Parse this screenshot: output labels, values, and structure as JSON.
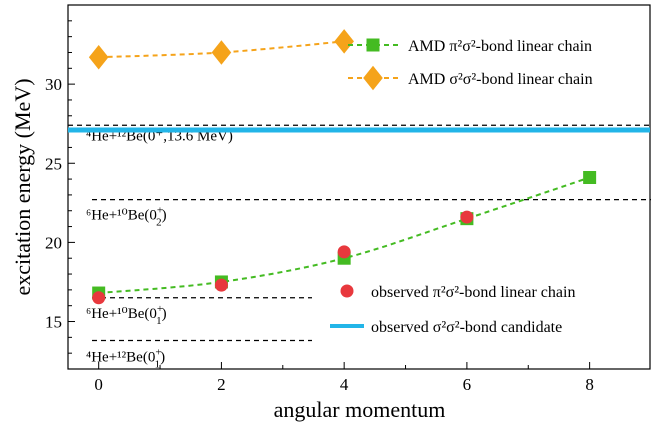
{
  "chart_data": {
    "type": "scatter",
    "xlabel": "angular momentum",
    "ylabel": "excitation energy (MeV)",
    "xlim": [
      -0.5,
      9
    ],
    "ylim": [
      12,
      35
    ],
    "xticks": [
      0,
      2,
      4,
      6,
      8
    ],
    "yticks": [
      15,
      20,
      25,
      30
    ],
    "series": [
      {
        "name": "AMD π²σ²-bond linear chain",
        "marker": "square",
        "color": "#44bb22",
        "line": "dashed",
        "x": [
          0,
          2,
          4,
          6,
          8
        ],
        "y": [
          16.8,
          17.5,
          19.0,
          21.5,
          24.1
        ]
      },
      {
        "name": "AMD σ²σ²-bond linear chain",
        "marker": "diamond",
        "color": "#f5a31a",
        "line": "dashed",
        "x": [
          0,
          2,
          4
        ],
        "y": [
          31.7,
          32.0,
          32.7
        ]
      },
      {
        "name": "observed π²σ²-bond linear chain",
        "marker": "circle",
        "color": "#e8383d",
        "line": "none",
        "x": [
          0,
          2,
          4,
          6
        ],
        "y": [
          16.5,
          17.3,
          19.4,
          21.6
        ]
      },
      {
        "name": "observed σ²σ²-bond candidate",
        "marker": "hline",
        "color": "#22b5e8",
        "line": "solid",
        "y": [
          27.1
        ]
      }
    ],
    "thresholds": [
      {
        "y": 27.4,
        "label_base": "⁴He+¹²Be(0⁺,13.6 MeV)"
      },
      {
        "y": 22.7,
        "label_base": "⁶He+¹⁰Be(0",
        "label_sup": "+",
        "label_sub": "2",
        "label_end": ")"
      },
      {
        "y": 16.5,
        "label_base": "⁶He+¹⁰Be(0",
        "label_sup": "+",
        "label_sub": "1",
        "label_end": ")"
      },
      {
        "y": 13.8,
        "label_base": "⁴He+¹²Be(0",
        "label_sup": "+",
        "label_sub": "1",
        "label_end": ")"
      }
    ]
  }
}
